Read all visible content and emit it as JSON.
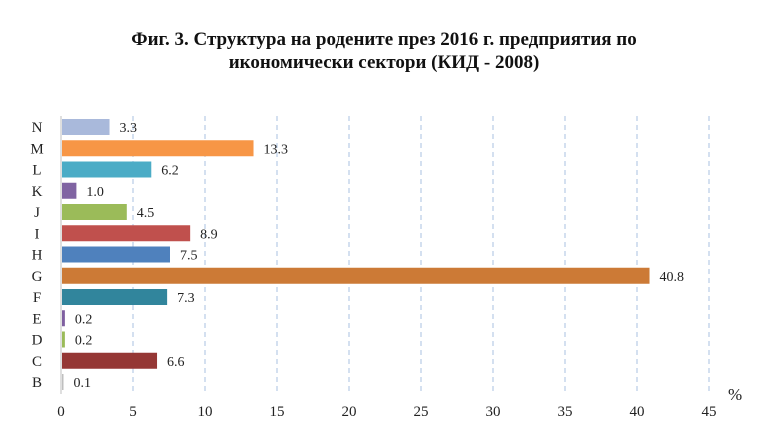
{
  "chart_data": {
    "type": "bar",
    "orientation": "horizontal",
    "title_lines": [
      "Фиг. 3. Структура на родените през 2016 г. предприятия по",
      "икономически сектори (КИД - 2008)"
    ],
    "xlabel": "%",
    "ylabel": "",
    "categories": [
      "N",
      "M",
      "L",
      "K",
      "J",
      "I",
      "H",
      "G",
      "F",
      "E",
      "D",
      "C",
      "B"
    ],
    "values": [
      3.3,
      13.3,
      6.2,
      1.0,
      4.5,
      8.9,
      7.5,
      40.8,
      7.3,
      0.2,
      0.2,
      6.6,
      0.1
    ],
    "value_labels": [
      "3.3",
      "13.3",
      "6.2",
      "1.0",
      "4.5",
      "8.9",
      "7.5",
      "40.8",
      "7.3",
      "0.2",
      "0.2",
      "6.6",
      "0.1"
    ],
    "colors": [
      "#a9b9db",
      "#f79646",
      "#4bacc6",
      "#8064a2",
      "#9bbb59",
      "#c0504d",
      "#4f81bd",
      "#cc7a36",
      "#31859c",
      "#7f5fa0",
      "#9bbb59",
      "#953735",
      "#bfbfbf"
    ],
    "xlim": [
      0,
      45
    ],
    "xticks": [
      0,
      5,
      10,
      15,
      20,
      25,
      30,
      35,
      40,
      45
    ],
    "grid": "vertical dashed",
    "legend": "none"
  }
}
